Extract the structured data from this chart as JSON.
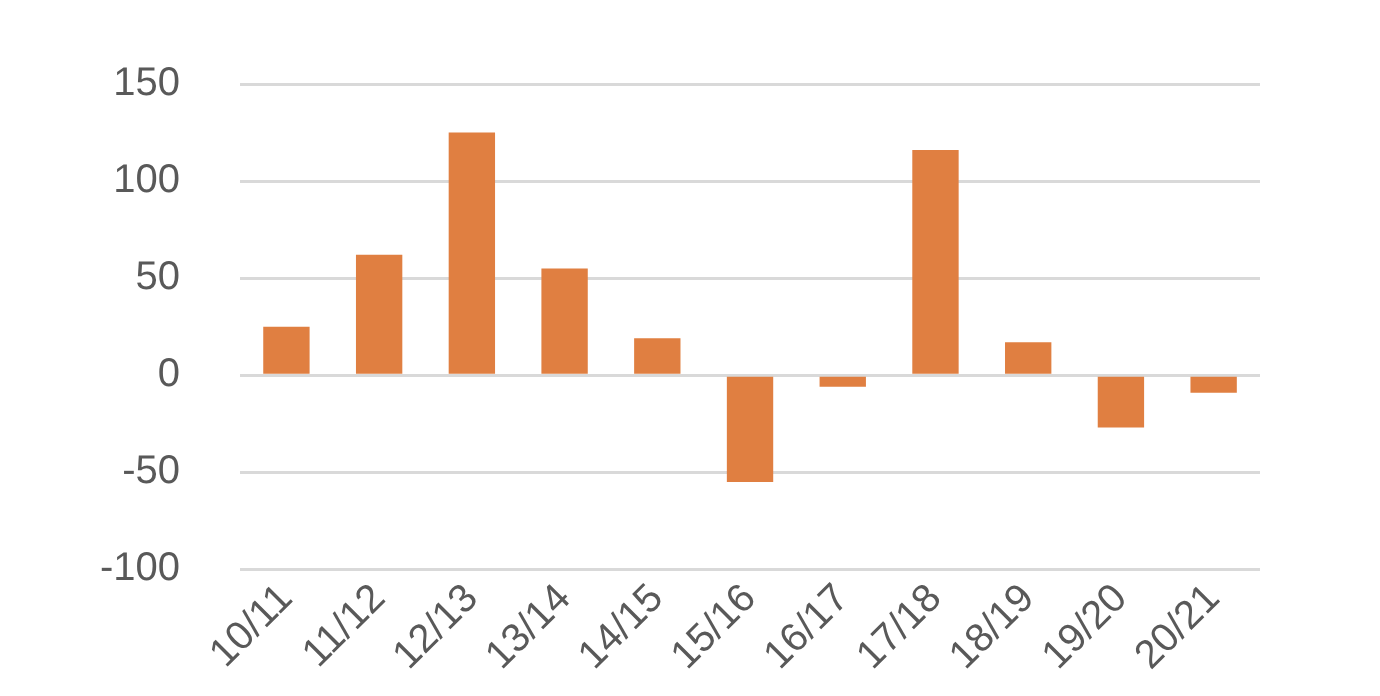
{
  "chart_data": {
    "type": "bar",
    "categories": [
      "10/11",
      "11/12",
      "12/13",
      "13/14",
      "14/15",
      "15/16",
      "16/17",
      "17/18",
      "18/19",
      "19/20",
      "20/21"
    ],
    "values": [
      25,
      62,
      125,
      55,
      19,
      -55,
      -6,
      116,
      17,
      -27,
      -9
    ],
    "color": "#e07f41",
    "ylim": [
      -100,
      150
    ],
    "yticks": [
      -100,
      -50,
      0,
      50,
      100,
      150
    ],
    "grid": "y",
    "legend": false
  }
}
